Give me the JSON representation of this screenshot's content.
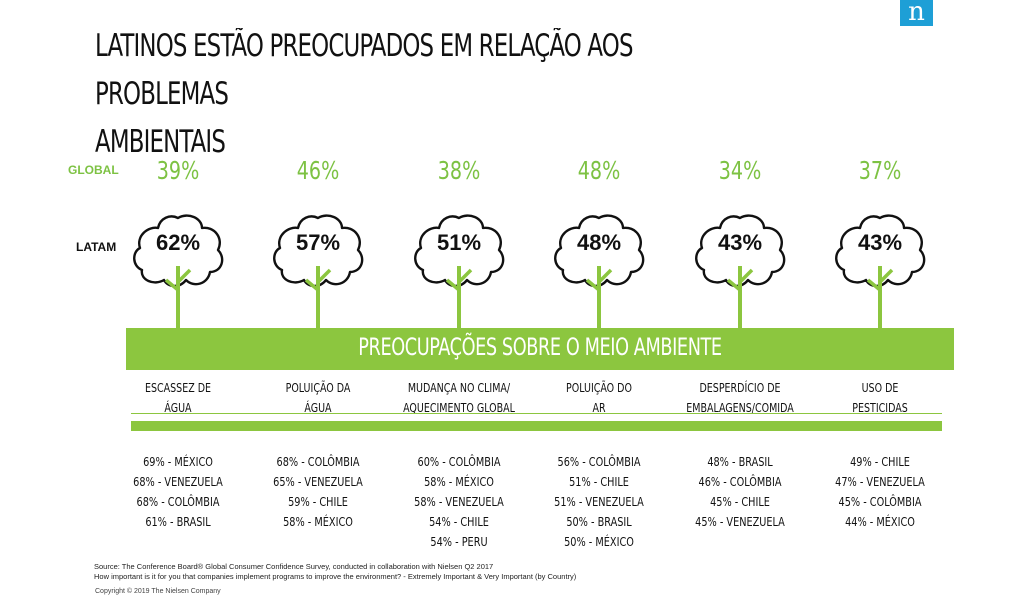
{
  "title_line1": "LATINOS ESTÃO PREOCUPADOS EM RELAÇÃO AOS PROBLEMAS",
  "title_line2": "AMBIENTAIS",
  "logo_letter": "n",
  "row_labels": {
    "global": "GLOBAL",
    "latam": "LATAM"
  },
  "band_label": "PREOCUPAÇÕES SOBRE O MEIO AMBIENTE",
  "source_line1": "Source: The Conference Board® Global Consumer Confidence Survey, conducted in collaboration with Nielsen Q2 2017",
  "source_line2": "How important is it for you that companies implement programs to improve the environment? - Extremely Important & Very Important (by Country)",
  "copyright": "Copyright © 2019 The Nielsen Company",
  "colors": {
    "green": "#8cc63f",
    "global_green": "#7dc243",
    "logo_blue": "#1e9fd6"
  },
  "chart_data": {
    "type": "table",
    "title": "LATINOS ESTÃO PREOCUPADOS EM RELAÇÃO AOS PROBLEMAS AMBIENTAIS",
    "categories": [
      {
        "line1": "ESCASSEZ DE",
        "line2": "ÁGUA",
        "global": "39%",
        "latam": "62%",
        "countries": [
          "69% - MÉXICO",
          "68% - VENEZUELA",
          "68% - COLÔMBIA",
          "61% - BRASIL"
        ]
      },
      {
        "line1": "POLUIÇÃO DA",
        "line2": "ÁGUA",
        "global": "46%",
        "latam": "57%",
        "countries": [
          "68% - COLÔMBIA",
          "65% - VENEZUELA",
          "59% - CHILE",
          "58% - MÉXICO"
        ]
      },
      {
        "line1": "MUDANÇA NO CLIMA/",
        "line2": "AQUECIMENTO GLOBAL",
        "global": "38%",
        "latam": "51%",
        "countries": [
          "60% - COLÔMBIA",
          "58% - MÉXICO",
          "58% - VENEZUELA",
          "54% - CHILE",
          "54% - PERU"
        ]
      },
      {
        "line1": "POLUIÇÃO DO",
        "line2": "AR",
        "global": "48%",
        "latam": "48%",
        "countries": [
          "56% - COLÔMBIA",
          "51% - CHILE",
          "51% - VENEZUELA",
          "50% - BRASIL",
          "50% - MÉXICO"
        ]
      },
      {
        "line1": "DESPERDÍCIO DE",
        "line2": "EMBALAGENS/COMIDA",
        "global": "34%",
        "latam": "43%",
        "countries": [
          "48% - BRASIL",
          "46% - COLÔMBIA",
          "45% - CHILE",
          "45% - VENEZUELA"
        ]
      },
      {
        "line1": "USO DE",
        "line2": "PESTICIDAS",
        "global": "37%",
        "latam": "43%",
        "countries": [
          "49% - CHILE",
          "47% - VENEZUELA",
          "45% - COLÔMBIA",
          "44% - MÉXICO"
        ]
      }
    ]
  }
}
